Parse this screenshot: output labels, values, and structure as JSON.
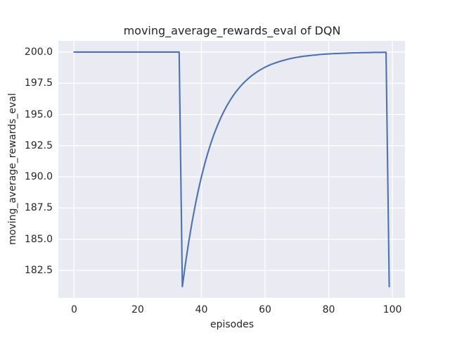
{
  "chart_data": {
    "type": "line",
    "title": "moving_average_rewards_eval of DQN",
    "xlabel": "episodes",
    "ylabel": "moving_average_rewards_eval",
    "xlim": [
      -4.95,
      103.95
    ],
    "ylim": [
      180.3,
      200.9
    ],
    "xticks": [
      0,
      20,
      40,
      60,
      80,
      100
    ],
    "xtick_labels": [
      "0",
      "20",
      "40",
      "60",
      "80",
      "100"
    ],
    "yticks": [
      182.5,
      185.0,
      187.5,
      190.0,
      192.5,
      195.0,
      197.5,
      200.0
    ],
    "ytick_labels": [
      "182.5",
      "185.0",
      "187.5",
      "190.0",
      "192.5",
      "195.0",
      "197.5",
      "200.0"
    ],
    "grid": true,
    "legend": false,
    "style": {
      "fig_bg": "#ffffff",
      "plot_bg": "#eaeaf2",
      "grid_color": "#ffffff",
      "text_color": "#262626",
      "line_color": "#4c72b0"
    },
    "series": [
      {
        "name": "moving_average_rewards_eval",
        "color": "#4c72b0",
        "x": [
          0,
          1,
          2,
          3,
          4,
          5,
          6,
          7,
          8,
          9,
          10,
          11,
          12,
          13,
          14,
          15,
          16,
          17,
          18,
          19,
          20,
          21,
          22,
          23,
          24,
          25,
          26,
          27,
          28,
          29,
          30,
          31,
          32,
          33,
          34,
          35,
          36,
          37,
          38,
          39,
          40,
          41,
          42,
          43,
          44,
          45,
          46,
          47,
          48,
          49,
          50,
          51,
          52,
          53,
          54,
          55,
          56,
          57,
          58,
          59,
          60,
          61,
          62,
          63,
          64,
          65,
          66,
          67,
          68,
          69,
          70,
          71,
          72,
          73,
          74,
          75,
          76,
          77,
          78,
          79,
          80,
          81,
          82,
          83,
          84,
          85,
          86,
          87,
          88,
          89,
          90,
          91,
          92,
          93,
          94,
          95,
          96,
          97,
          98,
          99
        ],
        "y": [
          200,
          200,
          200,
          200,
          200,
          200,
          200,
          200,
          200,
          200,
          200,
          200,
          200,
          200,
          200,
          200,
          200,
          200,
          200,
          200,
          200,
          200,
          200,
          200,
          200,
          200,
          200,
          200,
          200,
          200,
          200,
          200,
          200,
          200,
          181.2,
          183.08,
          184.77,
          186.29,
          187.66,
          188.9,
          190.01,
          191.01,
          191.91,
          192.72,
          193.45,
          194.1,
          194.69,
          195.22,
          195.7,
          196.13,
          196.52,
          196.87,
          197.18,
          197.46,
          197.71,
          197.94,
          198.15,
          198.33,
          198.5,
          198.65,
          198.79,
          198.91,
          199.02,
          199.11,
          199.2,
          199.28,
          199.35,
          199.42,
          199.48,
          199.53,
          199.58,
          199.62,
          199.66,
          199.69,
          199.72,
          199.75,
          199.77,
          199.8,
          199.82,
          199.84,
          199.85,
          199.87,
          199.88,
          199.89,
          199.9,
          199.91,
          199.92,
          199.93,
          199.94,
          199.94,
          199.95,
          199.95,
          199.96,
          199.96,
          199.97,
          199.97,
          199.97,
          199.98,
          199.98,
          181.2
        ]
      }
    ]
  }
}
